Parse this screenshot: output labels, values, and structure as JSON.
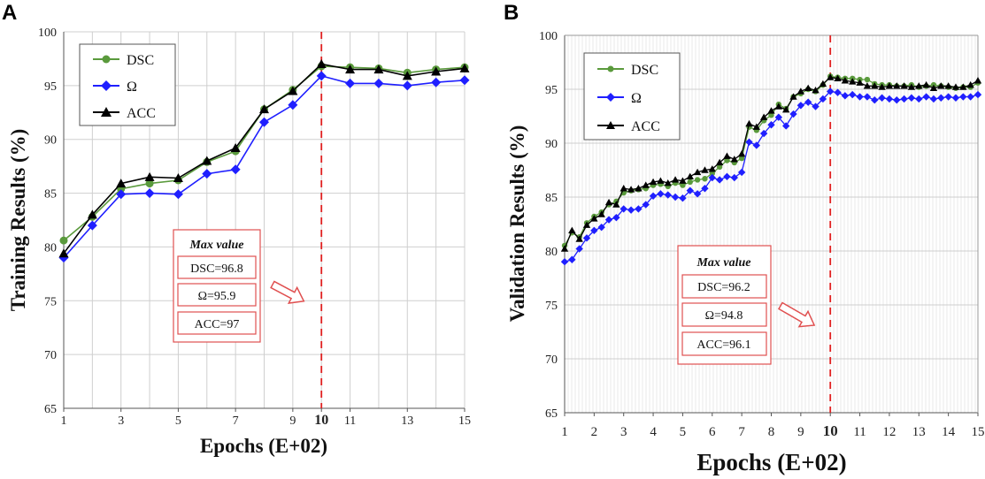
{
  "chart_data": [
    {
      "panel": "A",
      "type": "line",
      "xlabel": "Epochs (E+02)",
      "ylabel": "Training Results (%)",
      "xlim": [
        1,
        15
      ],
      "ylim": [
        65,
        100
      ],
      "xticks": [
        "1",
        "3",
        "5",
        "7",
        "9",
        "10",
        "11",
        "13",
        "15"
      ],
      "yticks": [
        "65",
        "70",
        "75",
        "80",
        "85",
        "90",
        "95",
        "100"
      ],
      "highlight_x": 10,
      "highlight_label": "10",
      "legend": [
        "DSC",
        "Ω",
        "ACC"
      ],
      "x": [
        1,
        2,
        3,
        4,
        5,
        6,
        7,
        8,
        9,
        10,
        11,
        12,
        13,
        14,
        15
      ],
      "series": [
        {
          "name": "DSC",
          "color": "#5a9a3c",
          "marker": "circle",
          "values": [
            80.6,
            82.8,
            85.4,
            85.9,
            86.2,
            87.9,
            88.9,
            92.8,
            94.6,
            96.8,
            96.7,
            96.6,
            96.2,
            96.5,
            96.7
          ]
        },
        {
          "name": "Ω",
          "color": "#1f1fff",
          "marker": "diamond",
          "values": [
            79.0,
            82.0,
            84.9,
            85.0,
            84.9,
            86.8,
            87.2,
            91.6,
            93.2,
            95.9,
            95.2,
            95.2,
            95.0,
            95.3,
            95.5
          ]
        },
        {
          "name": "ACC",
          "color": "#000000",
          "marker": "triangle",
          "values": [
            79.4,
            83.0,
            85.9,
            86.5,
            86.4,
            88.0,
            89.2,
            92.8,
            94.5,
            97.0,
            96.5,
            96.5,
            95.9,
            96.3,
            96.6
          ]
        }
      ],
      "max_value": {
        "title": "Max value",
        "items": [
          "DSC=96.8",
          "Ω=95.9",
          "ACC=97"
        ]
      }
    },
    {
      "panel": "B",
      "type": "line",
      "xlabel": "Epochs (E+02)",
      "ylabel": "Validation Results (%)",
      "xlim": [
        1,
        15
      ],
      "ylim": [
        65,
        100
      ],
      "xticks": [
        "1",
        "2",
        "3",
        "4",
        "5",
        "6",
        "7",
        "8",
        "9",
        "10",
        "11",
        "12",
        "13",
        "14",
        "15"
      ],
      "yticks": [
        "65",
        "70",
        "75",
        "80",
        "85",
        "90",
        "95",
        "100"
      ],
      "highlight_x": 10,
      "highlight_label": "10",
      "legend": [
        "DSC",
        "Ω",
        "ACC"
      ],
      "x": [
        1,
        1.25,
        1.5,
        1.75,
        2,
        2.25,
        2.5,
        2.75,
        3,
        3.25,
        3.5,
        3.75,
        4,
        4.25,
        4.5,
        4.75,
        5,
        5.25,
        5.5,
        5.75,
        6,
        6.25,
        6.5,
        6.75,
        7,
        7.25,
        7.5,
        7.75,
        8,
        8.25,
        8.5,
        8.75,
        9,
        9.25,
        9.5,
        9.75,
        10,
        10.25,
        10.5,
        10.75,
        11,
        11.25,
        11.5,
        11.75,
        12,
        12.25,
        12.5,
        12.75,
        13,
        13.25,
        13.5,
        13.75,
        14,
        14.25,
        14.5,
        14.75,
        15
      ],
      "series": [
        {
          "name": "DSC",
          "color": "#5a9a3c",
          "marker": "circle",
          "values": [
            80.5,
            81.7,
            81.3,
            82.6,
            83.2,
            83.6,
            84.3,
            84.6,
            85.4,
            85.6,
            85.7,
            85.8,
            86.1,
            86.2,
            86.0,
            86.3,
            86.1,
            86.4,
            86.6,
            86.7,
            87.2,
            87.8,
            88.4,
            88.2,
            88.6,
            91.5,
            91.2,
            92.1,
            92.6,
            93.6,
            93.2,
            94.3,
            94.6,
            95.0,
            94.8,
            95.4,
            96.2,
            96.1,
            96.0,
            96.0,
            95.9,
            95.9,
            95.5,
            95.4,
            95.4,
            95.3,
            95.3,
            95.4,
            95.2,
            95.3,
            95.4,
            95.3,
            95.2,
            95.1,
            95.2,
            95.2,
            95.6
          ]
        },
        {
          "name": "Ω",
          "color": "#1f1fff",
          "marker": "diamond",
          "values": [
            79.0,
            79.2,
            80.2,
            81.2,
            81.9,
            82.2,
            82.9,
            83.1,
            83.9,
            83.8,
            83.9,
            84.3,
            85.1,
            85.3,
            85.2,
            85.0,
            84.9,
            85.6,
            85.3,
            85.8,
            86.8,
            86.6,
            86.9,
            86.8,
            87.3,
            90.1,
            89.8,
            90.9,
            91.7,
            92.4,
            91.6,
            92.7,
            93.5,
            93.8,
            93.4,
            94.1,
            94.8,
            94.7,
            94.4,
            94.5,
            94.3,
            94.3,
            94.0,
            94.2,
            94.1,
            94.0,
            94.1,
            94.2,
            94.1,
            94.3,
            94.1,
            94.2,
            94.3,
            94.2,
            94.3,
            94.3,
            94.5
          ]
        },
        {
          "name": "ACC",
          "color": "#000000",
          "marker": "triangle",
          "values": [
            80.2,
            81.9,
            81.1,
            82.4,
            83.0,
            83.4,
            84.5,
            84.3,
            85.8,
            85.7,
            85.8,
            86.1,
            86.4,
            86.5,
            86.3,
            86.6,
            86.5,
            86.9,
            87.3,
            87.5,
            87.6,
            88.2,
            88.8,
            88.5,
            89.0,
            91.8,
            91.5,
            92.4,
            93.0,
            93.4,
            93.1,
            94.3,
            94.8,
            95.1,
            94.9,
            95.5,
            96.1,
            96.0,
            95.8,
            95.7,
            95.6,
            95.3,
            95.3,
            95.2,
            95.3,
            95.3,
            95.3,
            95.2,
            95.3,
            95.4,
            95.1,
            95.3,
            95.3,
            95.2,
            95.2,
            95.4,
            95.8
          ]
        }
      ],
      "max_value": {
        "title": "Max value",
        "items": [
          "DSC=96.2",
          "Ω=94.8",
          "ACC=96.1"
        ]
      }
    }
  ]
}
